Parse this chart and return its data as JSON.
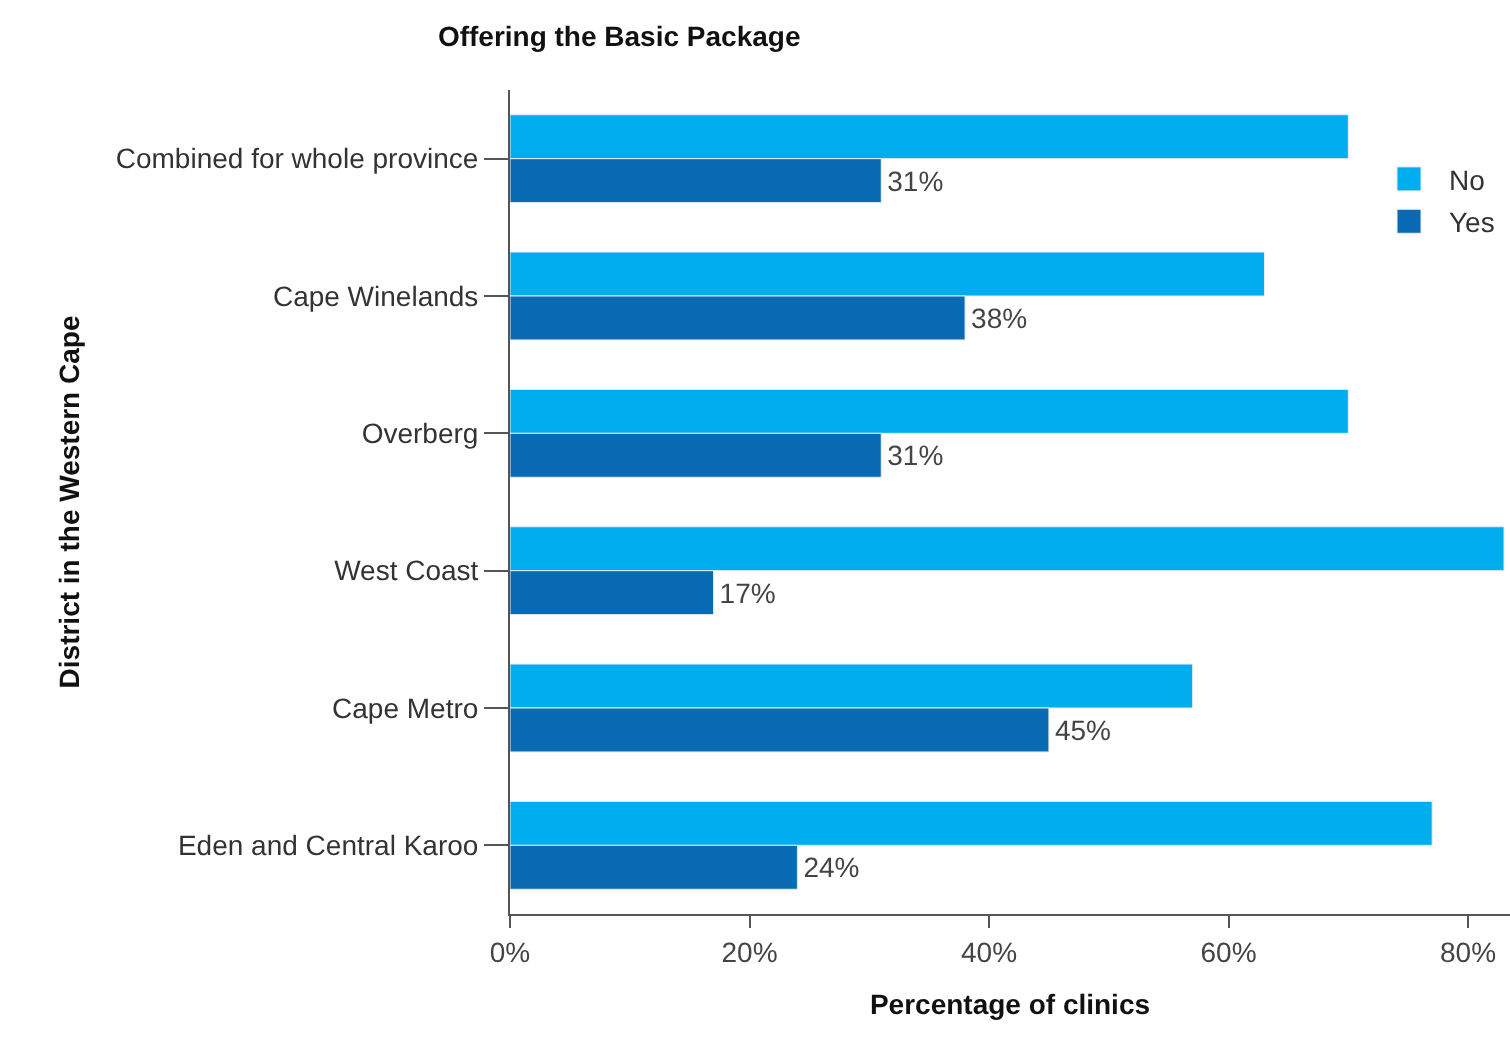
{
  "chart_data": {
    "type": "bar",
    "orientation": "horizontal",
    "title": "Offering the Basic Package",
    "xlabel": "Percentage of clinics",
    "ylabel": "District in the Western Cape",
    "categories": [
      "Combined for whole province",
      "Cape Winelands",
      "Overberg",
      "West Coast",
      "Cape Metro",
      "Eden and Central Karoo"
    ],
    "series": [
      {
        "name": "No",
        "color": "#00aeef",
        "values": [
          70,
          63,
          70,
          83,
          57,
          77
        ]
      },
      {
        "name": "Yes",
        "color": "#0a6ab4",
        "values": [
          31,
          38,
          31,
          17,
          45,
          24
        ],
        "value_labels": [
          "31%",
          "38%",
          "31%",
          "17%",
          "45%",
          "24%"
        ]
      }
    ],
    "xlim": [
      0,
      83.5
    ],
    "xticks": [
      {
        "value": 0,
        "label": "0%"
      },
      {
        "value": 20,
        "label": "20%"
      },
      {
        "value": 40,
        "label": "40%"
      },
      {
        "value": 60,
        "label": "60%"
      },
      {
        "value": 80,
        "label": "80%"
      }
    ],
    "legend": "top right"
  }
}
